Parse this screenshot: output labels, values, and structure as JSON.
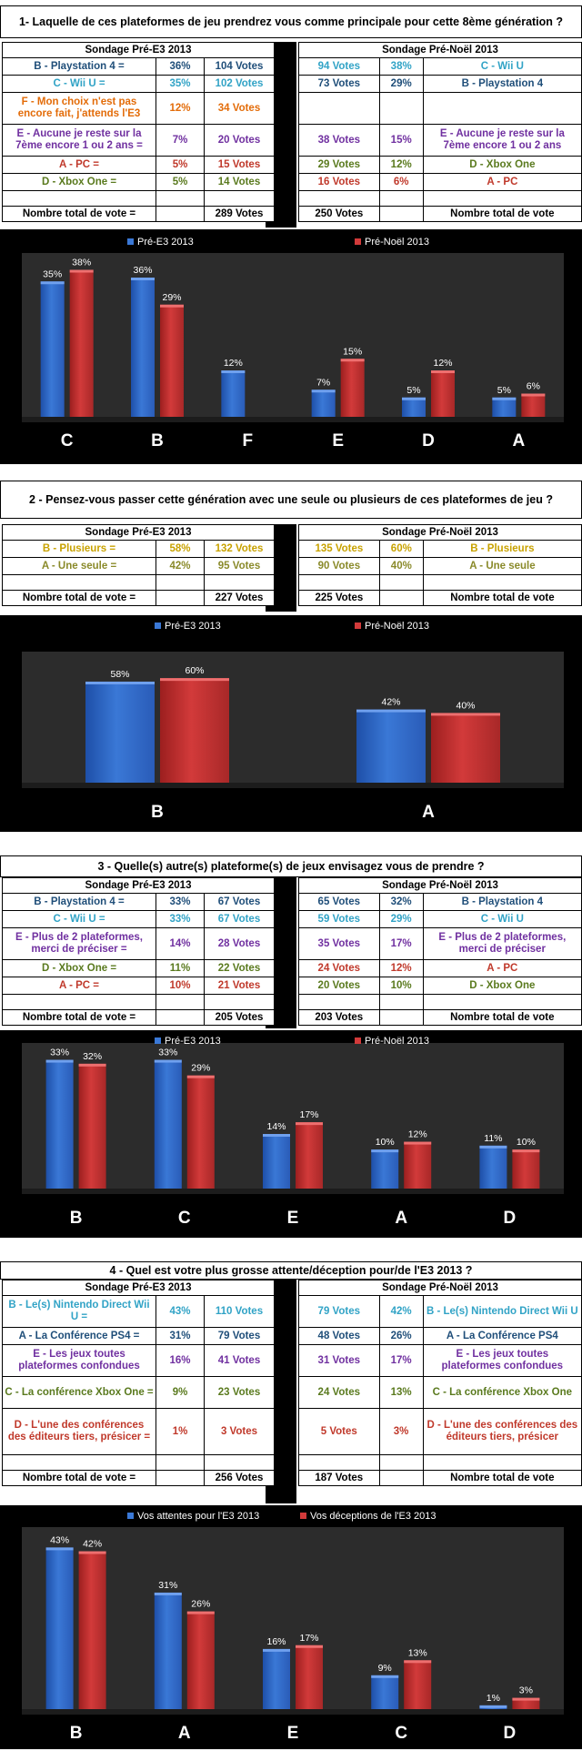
{
  "sections": [
    {
      "title": "1- Laquelle de ces plateformes de jeu prendrez vous comme principale pour cette 8ème génération ?",
      "left_header": "Sondage Pré-E3 2013",
      "right_header": "Sondage Pré-Noël 2013",
      "rows": [
        {
          "l_label": "B - Playstation 4 =",
          "l_pct": "36%",
          "l_votes": "104 Votes",
          "r_votes": "94 Votes",
          "r_pct": "38%",
          "r_label": "C - Wii U",
          "l_color": "#1f4e79",
          "r_color": "#31a3c6"
        },
        {
          "l_label": "C - Wii U =",
          "l_pct": "35%",
          "l_votes": "102 Votes",
          "r_votes": "73 Votes",
          "r_pct": "29%",
          "r_label": "B - Playstation 4",
          "l_color": "#31a3c6",
          "r_color": "#1f4e79"
        },
        {
          "l_label": "F - Mon choix n'est pas encore fait, j'attends l'E3",
          "l_pct": "12%",
          "l_votes": "34 Votes",
          "r_votes": "",
          "r_pct": "",
          "r_label": "",
          "l_color": "#e36c09",
          "r_color": "#e36c09"
        },
        {
          "l_label": "E - Aucune je reste sur la 7ème encore 1 ou 2 ans =",
          "l_pct": "7%",
          "l_votes": "20 Votes",
          "r_votes": "38 Votes",
          "r_pct": "15%",
          "r_label": "E - Aucune je reste sur la 7ème encore 1 ou 2 ans",
          "l_color": "#7030a0",
          "r_color": "#7030a0"
        },
        {
          "l_label": "A - PC =",
          "l_pct": "5%",
          "l_votes": "15 Votes",
          "r_votes": "29 Votes",
          "r_pct": "12%",
          "r_label": "D - Xbox One",
          "l_color": "#c0392b",
          "r_color": "#5a7a1e"
        },
        {
          "l_label": "D - Xbox One =",
          "l_pct": "5%",
          "l_votes": "14 Votes",
          "r_votes": "16 Votes",
          "r_pct": "6%",
          "r_label": "A - PC",
          "l_color": "#5a7a1e",
          "r_color": "#c0392b"
        }
      ],
      "total_label": "Nombre total de vote =",
      "total_left": "289 Votes",
      "total_right": "250 Votes",
      "total_right_label": "Nombre total de vote"
    },
    {
      "title": "2 - Pensez-vous passer cette génération avec une seule ou plusieurs de ces plateformes de jeu ?",
      "left_header": "Sondage Pré-E3 2013",
      "right_header": "Sondage Pré-Noël 2013",
      "rows": [
        {
          "l_label": "B - Plusieurs =",
          "l_pct": "58%",
          "l_votes": "132 Votes",
          "r_votes": "135 Votes",
          "r_pct": "60%",
          "r_label": "B - Plusieurs",
          "l_color": "#c8a200",
          "r_color": "#c8a200"
        },
        {
          "l_label": "A - Une seule =",
          "l_pct": "42%",
          "l_votes": "95 Votes",
          "r_votes": "90 Votes",
          "r_pct": "40%",
          "r_label": "A - Une seule",
          "l_color": "#8a8a2a",
          "r_color": "#8a8a2a"
        }
      ],
      "total_label": "Nombre total de vote =",
      "total_left": "227 Votes",
      "total_right": "225 Votes",
      "total_right_label": "Nombre total de vote"
    },
    {
      "title": "3 - Quelle(s) autre(s) plateforme(s) de jeux envisagez vous de prendre ?",
      "left_header": "Sondage Pré-E3 2013",
      "right_header": "Sondage Pré-Noël 2013",
      "rows": [
        {
          "l_label": "B - Playstation 4 =",
          "l_pct": "33%",
          "l_votes": "67 Votes",
          "r_votes": "65 Votes",
          "r_pct": "32%",
          "r_label": "B - Playstation 4",
          "l_color": "#1f4e79",
          "r_color": "#1f4e79"
        },
        {
          "l_label": "C - Wii U =",
          "l_pct": "33%",
          "l_votes": "67 Votes",
          "r_votes": "59 Votes",
          "r_pct": "29%",
          "r_label": "C - Wii U",
          "l_color": "#31a3c6",
          "r_color": "#31a3c6"
        },
        {
          "l_label": "E - Plus de 2 plateformes, merci de préciser =",
          "l_pct": "14%",
          "l_votes": "28 Votes",
          "r_votes": "35 Votes",
          "r_pct": "17%",
          "r_label": "E - Plus de 2 plateformes, merci de préciser",
          "l_color": "#7030a0",
          "r_color": "#7030a0"
        },
        {
          "l_label": "D - Xbox One =",
          "l_pct": "11%",
          "l_votes": "22 Votes",
          "r_votes": "24 Votes",
          "r_pct": "12%",
          "r_label": "A - PC",
          "l_color": "#5a7a1e",
          "r_color": "#c0392b"
        },
        {
          "l_label": "A - PC =",
          "l_pct": "10%",
          "l_votes": "21 Votes",
          "r_votes": "20 Votes",
          "r_pct": "10%",
          "r_label": "D - Xbox One",
          "l_color": "#c0392b",
          "r_color": "#5a7a1e"
        }
      ],
      "total_label": "Nombre total de vote =",
      "total_left": "205 Votes",
      "total_right": "203 Votes",
      "total_right_label": "Nombre total de vote"
    },
    {
      "title": "4 - Quel est votre plus grosse attente/déception pour/de l'E3 2013 ?",
      "left_header": "Sondage Pré-E3 2013",
      "right_header": "Sondage Pré-Noël 2013",
      "rows": [
        {
          "l_label": "B - Le(s) Nintendo Direct Wii U =",
          "l_pct": "43%",
          "l_votes": "110 Votes",
          "r_votes": "79 Votes",
          "r_pct": "42%",
          "r_label": "B - Le(s) Nintendo Direct Wii U",
          "l_color": "#31a3c6",
          "r_color": "#31a3c6"
        },
        {
          "l_label": "A - La Conférence PS4 =",
          "l_pct": "31%",
          "l_votes": "79 Votes",
          "r_votes": "48 Votes",
          "r_pct": "26%",
          "r_label": "A - La Conférence PS4",
          "l_color": "#1f4e79",
          "r_color": "#1f4e79"
        },
        {
          "l_label": "E - Les jeux toutes plateformes confondues",
          "l_pct": "16%",
          "l_votes": "41 Votes",
          "r_votes": "31 Votes",
          "r_pct": "17%",
          "r_label": "E - Les jeux toutes plateformes confondues",
          "l_color": "#7030a0",
          "r_color": "#7030a0"
        },
        {
          "l_label": "C - La conférence Xbox One =",
          "l_pct": "9%",
          "l_votes": "23 Votes",
          "r_votes": "24 Votes",
          "r_pct": "13%",
          "r_label": "C - La conférence Xbox One",
          "l_color": "#5a7a1e",
          "r_color": "#5a7a1e"
        },
        {
          "l_label": "D - L'une des conférences des éditeurs tiers, présicer =",
          "l_pct": "1%",
          "l_votes": "3 Votes",
          "r_votes": "5 Votes",
          "r_pct": "3%",
          "r_label": "D - L'une des conférences des éditeurs tiers, présicer",
          "l_color": "#c0392b",
          "r_color": "#c0392b"
        }
      ],
      "total_label": "Nombre total de vote =",
      "total_left": "256 Votes",
      "total_right": "187 Votes",
      "total_right_label": "Nombre total de vote"
    }
  ],
  "chart_data": [
    {
      "type": "bar",
      "categories": [
        "C",
        "B",
        "F",
        "E",
        "D",
        "A"
      ],
      "series": [
        {
          "name": "Pré-E3 2013",
          "values": [
            35,
            36,
            12,
            7,
            5,
            5
          ],
          "color": "#3a78d6"
        },
        {
          "name": "Pré-Noël 2013",
          "values": [
            38,
            29,
            null,
            15,
            12,
            6
          ],
          "color": "#d23a3a"
        }
      ],
      "value_suffix": "%",
      "ylim": [
        0,
        40
      ],
      "legend": "top"
    },
    {
      "type": "bar",
      "categories": [
        "B",
        "A"
      ],
      "series": [
        {
          "name": "Pré-E3 2013",
          "values": [
            58,
            42
          ],
          "color": "#3a78d6"
        },
        {
          "name": "Pré-Noël 2013",
          "values": [
            60,
            40
          ],
          "color": "#d23a3a"
        }
      ],
      "value_suffix": "%",
      "ylim": [
        0,
        70
      ],
      "legend": "top"
    },
    {
      "type": "bar",
      "categories": [
        "B",
        "C",
        "E",
        "A",
        "D"
      ],
      "series": [
        {
          "name": "Pré-E3 2013",
          "values": [
            33,
            33,
            14,
            10,
            11
          ],
          "color": "#3a78d6"
        },
        {
          "name": "Pré-Noël 2013",
          "values": [
            32,
            29,
            17,
            12,
            10
          ],
          "color": "#d23a3a"
        }
      ],
      "value_suffix": "%",
      "ylim": [
        0,
        35
      ],
      "legend": "top"
    },
    {
      "type": "bar",
      "categories": [
        "B",
        "A",
        "E",
        "C",
        "D"
      ],
      "series": [
        {
          "name": "Vos attentes pour l'E3 2013",
          "values": [
            43,
            31,
            16,
            9,
            1
          ],
          "color": "#3a78d6"
        },
        {
          "name": "Vos déceptions de l'E3 2013",
          "values": [
            42,
            26,
            17,
            13,
            3
          ],
          "color": "#d23a3a"
        }
      ],
      "value_suffix": "%",
      "ylim": [
        0,
        46
      ],
      "legend": "top"
    }
  ]
}
